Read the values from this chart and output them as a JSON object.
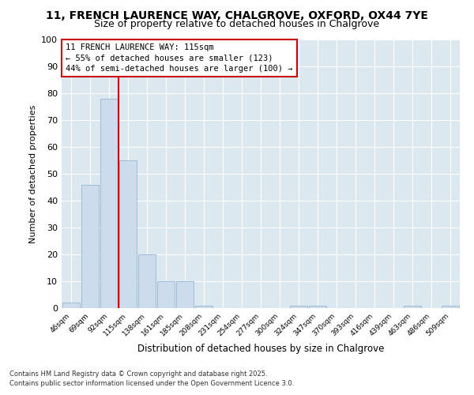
{
  "title_line1": "11, FRENCH LAURENCE WAY, CHALGROVE, OXFORD, OX44 7YE",
  "title_line2": "Size of property relative to detached houses in Chalgrove",
  "xlabel": "Distribution of detached houses by size in Chalgrove",
  "ylabel": "Number of detached properties",
  "categories": [
    "46sqm",
    "69sqm",
    "92sqm",
    "115sqm",
    "138sqm",
    "161sqm",
    "185sqm",
    "208sqm",
    "231sqm",
    "254sqm",
    "277sqm",
    "300sqm",
    "324sqm",
    "347sqm",
    "370sqm",
    "393sqm",
    "416sqm",
    "439sqm",
    "463sqm",
    "486sqm",
    "509sqm"
  ],
  "values": [
    2,
    46,
    78,
    55,
    20,
    10,
    10,
    1,
    0,
    0,
    0,
    0,
    1,
    1,
    0,
    0,
    0,
    0,
    1,
    0,
    1
  ],
  "bar_color": "#ccdcec",
  "bar_edge_color": "#a0bcd4",
  "vline_color": "#cc0000",
  "annotation_text": "11 FRENCH LAURENCE WAY: 115sqm\n← 55% of detached houses are smaller (123)\n44% of semi-detached houses are larger (100) →",
  "annotation_box_color": "#cc0000",
  "ylim": [
    0,
    100
  ],
  "yticks": [
    0,
    10,
    20,
    30,
    40,
    50,
    60,
    70,
    80,
    90,
    100
  ],
  "fig_bg_color": "#ffffff",
  "plot_bg_color": "#dce8f0",
  "grid_color": "#ffffff",
  "footer_line1": "Contains HM Land Registry data © Crown copyright and database right 2025.",
  "footer_line2": "Contains public sector information licensed under the Open Government Licence 3.0."
}
